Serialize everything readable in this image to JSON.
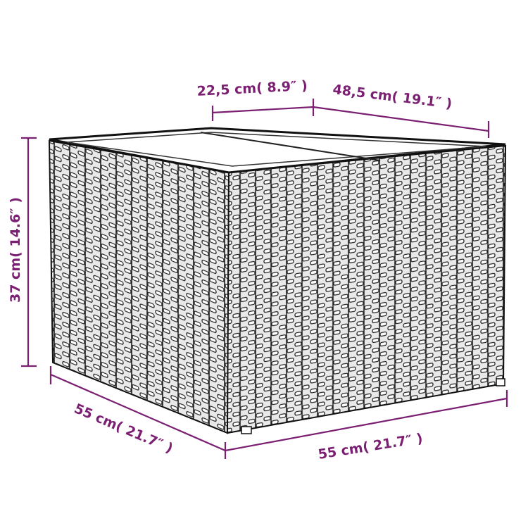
{
  "colors": {
    "dimension": "#7b1f72",
    "wicker": "#2a2a2a",
    "background": "#ffffff"
  },
  "dimensions": {
    "top_left": "22,5 cm( 8.9″ )",
    "top_right": "48,5 cm( 19.1″ )",
    "height": "37 cm( 14.6″ )",
    "bottom_left": "55 cm( 21.7″ )",
    "bottom_right": "55 cm( 21.7″ )"
  }
}
